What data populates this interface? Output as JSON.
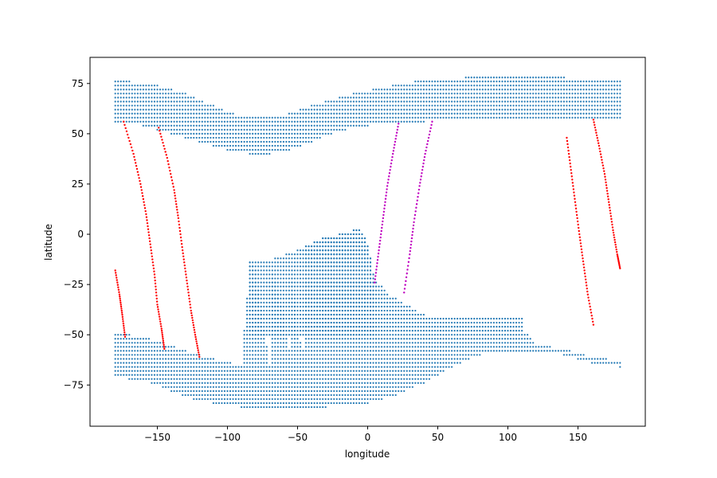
{
  "chart_data": {
    "type": "scatter",
    "title": "",
    "xlabel": "longitude",
    "ylabel": "latitude",
    "xlim": [
      -198,
      198
    ],
    "ylim": [
      -95.5,
      88
    ],
    "xticks": [
      -150,
      -100,
      -50,
      0,
      50,
      100,
      150
    ],
    "yticks": [
      -75,
      -50,
      -25,
      0,
      25,
      50,
      75
    ],
    "xtick_labels": [
      "−150",
      "−100",
      "−50",
      "0",
      "50",
      "100",
      "150"
    ],
    "ytick_labels": [
      "−75",
      "−50",
      "−25",
      "0",
      "25",
      "50",
      "75"
    ],
    "grid": false,
    "legend": "none",
    "grid_spacing_deg": 2,
    "series": [
      {
        "kind": "grid-points",
        "color": "#1f77b4",
        "description_regions": "blue dot grid (2-degree spacing)",
        "lat_bands": [
          {
            "lat_range": [
              56,
              77
            ],
            "lon_range": [
              -180,
              180
            ]
          },
          {
            "lat_range": [
              -88,
              -49
            ],
            "lon_range": [
              -180,
              180
            ]
          }
        ],
        "north_bottom_lat_profile": [
          [
            -180,
            56
          ],
          [
            -160,
            54
          ],
          [
            -140,
            50
          ],
          [
            -120,
            46
          ],
          [
            -100,
            42
          ],
          [
            -85,
            40
          ],
          [
            -70,
            40
          ],
          [
            -55,
            42
          ],
          [
            -40,
            46
          ],
          [
            -25,
            50
          ],
          [
            -10,
            53
          ],
          [
            0,
            54
          ],
          [
            20,
            55
          ],
          [
            40,
            56
          ],
          [
            60,
            57
          ],
          [
            80,
            57
          ],
          [
            100,
            58
          ],
          [
            120,
            58
          ],
          [
            140,
            58
          ],
          [
            160,
            58
          ],
          [
            180,
            57
          ]
        ],
        "north_top_lat_profile": [
          [
            -180,
            77
          ],
          [
            -170,
            76
          ],
          [
            -150,
            74
          ],
          [
            -130,
            70
          ],
          [
            -110,
            64
          ],
          [
            -95,
            60
          ],
          [
            -80,
            59
          ],
          [
            -60,
            59
          ],
          [
            -45,
            63
          ],
          [
            -30,
            66
          ],
          [
            -10,
            70
          ],
          [
            10,
            73
          ],
          [
            25,
            75
          ],
          [
            40,
            77
          ],
          [
            60,
            77
          ],
          [
            80,
            79
          ],
          [
            100,
            79
          ],
          [
            120,
            79
          ],
          [
            140,
            78
          ],
          [
            160,
            77
          ],
          [
            180,
            77
          ]
        ],
        "south_top_lat_profile": [
          [
            -180,
            -49
          ],
          [
            -170,
            -50
          ],
          [
            -155,
            -52
          ],
          [
            -140,
            -55
          ],
          [
            -125,
            -59
          ],
          [
            -110,
            -62
          ],
          [
            -90,
            -65
          ],
          [
            -70,
            -65
          ],
          [
            -55,
            -62
          ],
          [
            -45,
            -58
          ],
          [
            -50,
            -50
          ],
          [
            -60,
            -40
          ],
          [
            -70,
            -30
          ],
          [
            -80,
            -18
          ],
          [
            -84,
            -13
          ],
          [
            -70,
            -13
          ],
          [
            -55,
            -9
          ],
          [
            -45,
            -6
          ],
          [
            -30,
            -1
          ],
          [
            -20,
            0
          ],
          [
            -10,
            2
          ],
          [
            -5,
            3
          ],
          [
            0,
            -5
          ],
          [
            5,
            -22
          ],
          [
            15,
            -30
          ],
          [
            25,
            -34
          ],
          [
            40,
            -40
          ],
          [
            50,
            -42
          ],
          [
            80,
            -42
          ],
          [
            105,
            -42
          ],
          [
            110,
            -42
          ],
          [
            112,
            -49
          ],
          [
            115,
            -50
          ],
          [
            120,
            -55
          ],
          [
            140,
            -57
          ],
          [
            155,
            -60
          ],
          [
            170,
            -62
          ],
          [
            180,
            -63
          ]
        ],
        "south_bottom_lat_profile": [
          [
            -180,
            -70
          ],
          [
            -170,
            -72
          ],
          [
            -155,
            -74
          ],
          [
            -140,
            -78
          ],
          [
            -125,
            -82
          ],
          [
            -110,
            -84
          ],
          [
            -90,
            -86
          ],
          [
            -70,
            -87
          ],
          [
            -50,
            -87
          ],
          [
            -30,
            -86
          ],
          [
            -10,
            -84
          ],
          [
            0,
            -84
          ],
          [
            20,
            -80
          ],
          [
            40,
            -74
          ],
          [
            60,
            -66
          ],
          [
            80,
            -60
          ],
          [
            100,
            -58
          ],
          [
            120,
            -58
          ],
          [
            140,
            -60
          ],
          [
            160,
            -64
          ],
          [
            180,
            -66
          ]
        ]
      },
      {
        "kind": "track",
        "color": "#ff0000",
        "points": [
          [
            -180,
            -18
          ],
          [
            -177,
            -30
          ],
          [
            -175,
            -40
          ],
          [
            -173,
            -51
          ]
        ]
      },
      {
        "kind": "track",
        "color": "#ff0000",
        "points": [
          [
            -174,
            56
          ],
          [
            -167,
            40
          ],
          [
            -162,
            25
          ],
          [
            -158,
            10
          ],
          [
            -155,
            -5
          ],
          [
            -152,
            -20
          ],
          [
            -150,
            -35
          ],
          [
            -147,
            -47
          ],
          [
            -145,
            -57
          ]
        ]
      },
      {
        "kind": "track",
        "color": "#ff0000",
        "points": [
          [
            -149,
            53
          ],
          [
            -143,
            38
          ],
          [
            -138,
            22
          ],
          [
            -135,
            8
          ],
          [
            -132,
            -8
          ],
          [
            -129,
            -23
          ],
          [
            -126,
            -38
          ],
          [
            -123,
            -50
          ],
          [
            -120,
            -61
          ]
        ]
      },
      {
        "kind": "track",
        "color": "#c000c0",
        "points": [
          [
            5,
            -24
          ],
          [
            8,
            -8
          ],
          [
            11,
            8
          ],
          [
            14,
            24
          ],
          [
            18,
            40
          ],
          [
            22,
            55
          ]
        ]
      },
      {
        "kind": "track",
        "color": "#c000c0",
        "points": [
          [
            26,
            -29
          ],
          [
            30,
            -10
          ],
          [
            33,
            6
          ],
          [
            37,
            24
          ],
          [
            41,
            40
          ],
          [
            46,
            56
          ]
        ]
      },
      {
        "kind": "track",
        "color": "#ff0000",
        "points": [
          [
            142,
            48
          ],
          [
            145,
            32
          ],
          [
            148,
            16
          ],
          [
            151,
            0
          ],
          [
            154,
            -15
          ],
          [
            157,
            -30
          ],
          [
            161,
            -45
          ]
        ]
      },
      {
        "kind": "track",
        "color": "#ff0000",
        "points": [
          [
            161,
            57
          ],
          [
            165,
            44
          ],
          [
            169,
            30
          ],
          [
            172,
            16
          ],
          [
            175,
            2
          ],
          [
            178,
            -10
          ],
          [
            180,
            -17
          ]
        ]
      }
    ]
  }
}
